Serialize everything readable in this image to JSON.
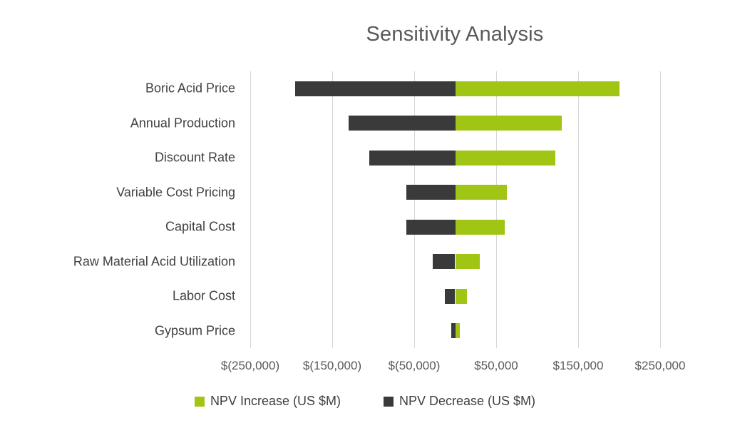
{
  "chart_data": {
    "type": "bar",
    "orientation": "horizontal-tornado",
    "title": "Sensitivity Analysis",
    "categories": [
      "Boric Acid Price",
      "Annual Production",
      "Discount Rate",
      "Variable Cost Pricing",
      "Capital Cost",
      "Raw Material Acid Utilization",
      "Labor Cost",
      "Gypsum Price"
    ],
    "series": [
      {
        "name": "NPV Increase (US $M)",
        "color": "#a0c515",
        "values": [
          200000,
          130000,
          122000,
          63000,
          60000,
          30000,
          14000,
          6000
        ]
      },
      {
        "name": "NPV Decrease (US $M)",
        "color": "#3a3a3a",
        "values": [
          -195000,
          -130000,
          -105000,
          -60000,
          -60000,
          -27000,
          -13000,
          -5000
        ]
      }
    ],
    "xlim": [
      -250000,
      250000
    ],
    "xticks": [
      {
        "label": "$(250,000)",
        "value": -250000
      },
      {
        "label": "$(150,000)",
        "value": -150000
      },
      {
        "label": "$(50,000)",
        "value": -50000
      },
      {
        "label": "$50,000",
        "value": 50000
      },
      {
        "label": "$150,000",
        "value": 150000
      },
      {
        "label": "$250,000",
        "value": 250000
      }
    ],
    "grid": "vertical-on",
    "legend_position": "bottom-center",
    "xlabel": "",
    "ylabel": ""
  }
}
